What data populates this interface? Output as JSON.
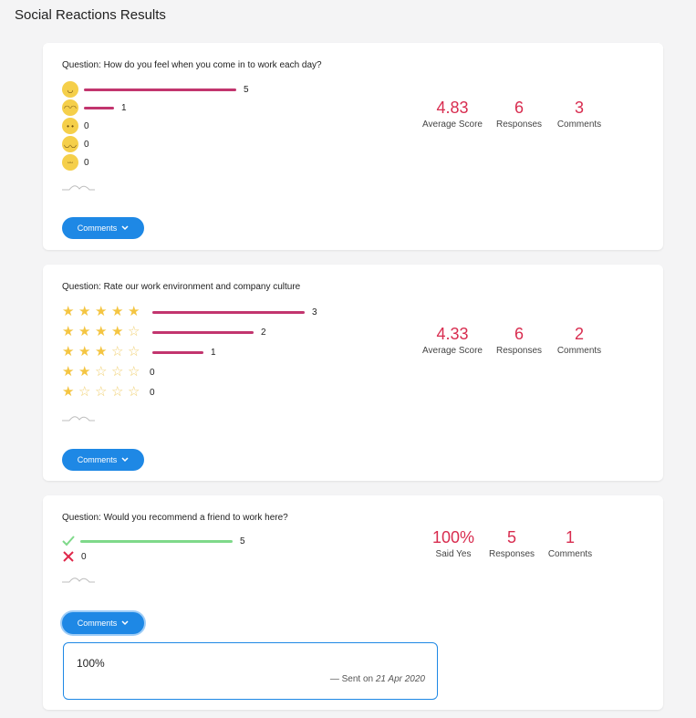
{
  "page": {
    "title": "Social Reactions Results"
  },
  "cards": [
    {
      "question": "Question: How do you feel when you come in to work each day?",
      "rows": [
        {
          "icon": "grinning-face-icon",
          "count": "5",
          "fraction": 1.0
        },
        {
          "icon": "smiling-face-icon",
          "count": "1",
          "fraction": 0.2
        },
        {
          "icon": "neutral-face-icon",
          "count": "0",
          "fraction": 0
        },
        {
          "icon": "unhappy-face-icon",
          "count": "0",
          "fraction": 0
        },
        {
          "icon": "crying-face-icon",
          "count": "0",
          "fraction": 0
        }
      ],
      "stats": [
        {
          "value": "4.83",
          "label": "Average Score"
        },
        {
          "value": "6",
          "label": "Responses"
        },
        {
          "value": "3",
          "label": "Comments"
        }
      ],
      "button": "Comments"
    },
    {
      "question": "Question: Rate our work environment and company culture",
      "rows": [
        {
          "stars": 5,
          "count": "3",
          "fraction": 1.0
        },
        {
          "stars": 4,
          "count": "2",
          "fraction": 0.6667
        },
        {
          "stars": 3,
          "count": "1",
          "fraction": 0.3333
        },
        {
          "stars": 2,
          "count": "0",
          "fraction": 0
        },
        {
          "stars": 1,
          "count": "0",
          "fraction": 0
        }
      ],
      "stats": [
        {
          "value": "4.33",
          "label": "Average Score"
        },
        {
          "value": "6",
          "label": "Responses"
        },
        {
          "value": "2",
          "label": "Comments"
        }
      ],
      "button": "Comments"
    },
    {
      "question": "Question: Would you recommend a friend to work here?",
      "rows": [
        {
          "icon": "check-icon",
          "count": "5",
          "fraction": 1.0
        },
        {
          "icon": "cross-icon",
          "count": "0",
          "fraction": 0
        }
      ],
      "stats": [
        {
          "value": "100%",
          "label": "Said Yes"
        },
        {
          "value": "5",
          "label": "Responses"
        },
        {
          "value": "1",
          "label": "Comments"
        }
      ],
      "button": "Comments",
      "comment": {
        "text": "100%",
        "sent_prefix": "— Sent on",
        "sent_date": "21 Apr 2020"
      }
    }
  ],
  "colors": {
    "accent": "#d82c4f",
    "bar": "#c2356e",
    "bar_yes": "#7fd98a",
    "button": "#1e88e5",
    "star": "#f4c542"
  },
  "icons": {
    "chevron": "chevron-down-icon",
    "sparkline": "sparkline-icon"
  }
}
